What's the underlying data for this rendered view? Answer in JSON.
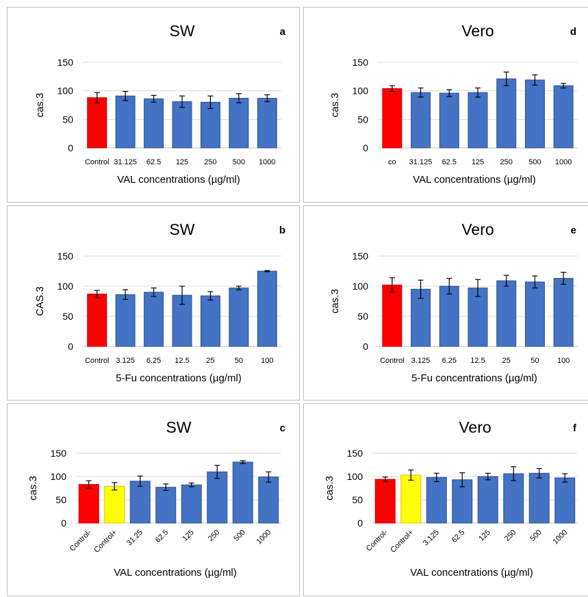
{
  "colors": {
    "control_neg": "#ff0000",
    "control_pos": "#ffff00",
    "series": "#4472c4",
    "grid": "#d9d9d9"
  },
  "chart_data": [
    {
      "id": "a",
      "type": "bar",
      "title": "SW",
      "panel_letter": "a",
      "categories": [
        "Control",
        "31.125",
        "62.5",
        "125",
        "250",
        "500",
        "1000"
      ],
      "values": [
        88,
        91,
        86,
        81,
        80,
        87,
        87
      ],
      "errors": [
        9,
        8,
        6,
        10,
        11,
        8,
        6
      ],
      "bar_colors": [
        "control_neg",
        "series",
        "series",
        "series",
        "series",
        "series",
        "series"
      ],
      "ylabel": "cas.3",
      "xlabel": "VAL concentrations (µg/ml)",
      "ylim": [
        0,
        150
      ],
      "yticks": [
        0,
        50,
        100,
        150
      ],
      "grid": true,
      "rotate_ticks": false
    },
    {
      "id": "d",
      "type": "bar",
      "title": "Vero",
      "panel_letter": "d",
      "categories": [
        "co",
        "31.125",
        "62.5",
        "125",
        "250",
        "500",
        "1000"
      ],
      "values": [
        104,
        97,
        96,
        97,
        121,
        119,
        109
      ],
      "errors": [
        5,
        8,
        6,
        8,
        12,
        9,
        4
      ],
      "bar_colors": [
        "control_neg",
        "series",
        "series",
        "series",
        "series",
        "series",
        "series"
      ],
      "ylabel": "cas.3",
      "xlabel": "VAL concentrations (µg/ml)",
      "ylim": [
        0,
        150
      ],
      "yticks": [
        0,
        50,
        100,
        150
      ],
      "grid": true,
      "rotate_ticks": false
    },
    {
      "id": "b",
      "type": "bar",
      "title": "SW",
      "panel_letter": "b",
      "categories": [
        "Control",
        "3.125",
        "6.25",
        "12.5",
        "25",
        "50",
        "100"
      ],
      "values": [
        87,
        86,
        90,
        85,
        84,
        97,
        125
      ],
      "errors": [
        6,
        8,
        7,
        15,
        7,
        3,
        1
      ],
      "bar_colors": [
        "control_neg",
        "series",
        "series",
        "series",
        "series",
        "series",
        "series"
      ],
      "ylabel": "CAS.3",
      "xlabel": "5-Fu concentrations (µg/ml)",
      "ylim": [
        0,
        150
      ],
      "yticks": [
        0,
        50,
        100,
        150
      ],
      "grid": true,
      "rotate_ticks": false
    },
    {
      "id": "e",
      "type": "bar",
      "title": "Vero",
      "panel_letter": "e",
      "categories": [
        "Control",
        "3.125",
        "6.25",
        "12.5",
        "25",
        "50",
        "100"
      ],
      "values": [
        102,
        95,
        100,
        97,
        109,
        107,
        113
      ],
      "errors": [
        12,
        15,
        13,
        14,
        9,
        10,
        10
      ],
      "bar_colors": [
        "control_neg",
        "series",
        "series",
        "series",
        "series",
        "series",
        "series"
      ],
      "ylabel": "cas.3",
      "xlabel": "5-Fu concentrations (µg/ml)",
      "ylim": [
        0,
        150
      ],
      "yticks": [
        0,
        50,
        100,
        150
      ],
      "grid": true,
      "rotate_ticks": false
    },
    {
      "id": "c",
      "type": "bar",
      "title": "SW",
      "panel_letter": "c",
      "categories": [
        "Control-",
        "Control+",
        "31.25",
        "62.5",
        "125",
        "250",
        "500",
        "1000"
      ],
      "values": [
        83,
        79,
        90,
        77,
        82,
        110,
        131,
        99
      ],
      "errors": [
        8,
        8,
        11,
        7,
        4,
        14,
        3,
        11
      ],
      "bar_colors": [
        "control_neg",
        "control_pos",
        "series",
        "series",
        "series",
        "series",
        "series",
        "series"
      ],
      "ylabel": "cas.3",
      "xlabel": "VAL concentrations (µg/ml)",
      "ylim": [
        0,
        150
      ],
      "yticks": [
        0,
        50,
        100,
        150
      ],
      "grid": true,
      "rotate_ticks": true
    },
    {
      "id": "f",
      "type": "bar",
      "title": "Vero",
      "panel_letter": "f",
      "categories": [
        "Control-",
        "Control+",
        "3.125",
        "62.5",
        "125",
        "250",
        "500",
        "1000"
      ],
      "values": [
        94,
        103,
        98,
        93,
        100,
        106,
        107,
        97
      ],
      "errors": [
        5,
        11,
        9,
        15,
        7,
        15,
        10,
        9
      ],
      "bar_colors": [
        "control_neg",
        "control_pos",
        "series",
        "series",
        "series",
        "series",
        "series",
        "series"
      ],
      "ylabel": "cas.3",
      "xlabel": "VAL concentrations (µg/ml)",
      "ylim": [
        0,
        150
      ],
      "yticks": [
        0,
        50,
        100,
        150
      ],
      "grid": true,
      "rotate_ticks": true
    }
  ]
}
